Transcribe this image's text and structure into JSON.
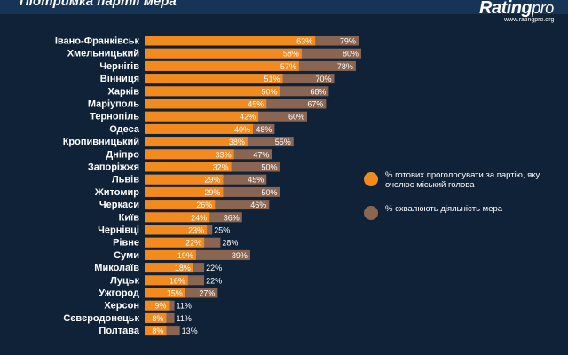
{
  "header": {
    "title": "Підтримка партії мера",
    "logo_text": "Rating",
    "logo_suffix": "pro",
    "logo_url": "www.ratingpro.org"
  },
  "colors": {
    "orange": "#f28a1e",
    "brown": "#8a6652",
    "background": "#0f2238"
  },
  "chart_data": {
    "type": "bar",
    "orientation": "horizontal",
    "categories": [
      "Івано-Франківськ",
      "Хмельницький",
      "Чернігів",
      "Вінниця",
      "Харків",
      "Маріуполь",
      "Тернопіль",
      "Одеса",
      "Кропивницький",
      "Дніпро",
      "Запоріжжя",
      "Львів",
      "Житомир",
      "Черкаси",
      "Київ",
      "Чернівці",
      "Рівне",
      "Суми",
      "Миколаїв",
      "Луцьк",
      "Ужгород",
      "Херсон",
      "Сєвєродонецьк",
      "Полтава"
    ],
    "series": [
      {
        "name": "% готових проголосувати за партію, яку очолює міський голова",
        "color": "#f28a1e",
        "values": [
          63,
          58,
          57,
          51,
          50,
          45,
          42,
          40,
          38,
          33,
          32,
          29,
          29,
          26,
          24,
          23,
          22,
          19,
          18,
          16,
          15,
          9,
          8,
          8
        ],
        "labels": [
          "63%",
          "58%",
          "57%",
          "51%",
          "50%",
          "45%",
          "42%",
          "40%",
          "38%",
          "33%",
          "32%",
          "29%",
          "29%",
          "26%",
          "24%",
          "23%",
          "22%",
          "19%",
          "18%",
          "16%",
          "15%",
          "9%",
          "8%",
          "8%"
        ]
      },
      {
        "name": "% схвалюють діяльність мера",
        "color": "#8a6652",
        "values": [
          79,
          80,
          78,
          70,
          68,
          67,
          60,
          48,
          55,
          47,
          50,
          45,
          50,
          46,
          36,
          25,
          28,
          39,
          22,
          22,
          27,
          11,
          11,
          13
        ],
        "labels": [
          "79%",
          "80%",
          "78%",
          "70%",
          "68%",
          "67%",
          "60%",
          "48%",
          "55%",
          "47%",
          "50%",
          "45%",
          "50%",
          "46%",
          "36%",
          "25%",
          "28%",
          "39%",
          "22%",
          "22%",
          "27%",
          "11%",
          "11%",
          "13%"
        ]
      }
    ],
    "xlim": [
      0,
      100
    ],
    "grid": false,
    "legend_position": "right"
  }
}
